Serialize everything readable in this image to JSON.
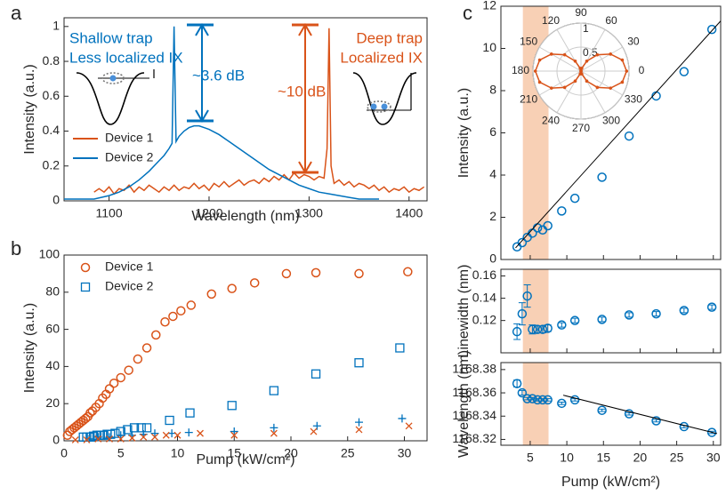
{
  "chart_data": [
    {
      "type": "line",
      "panel": "a",
      "xlabel": "Wavelength (nm)",
      "ylabel": "Intensity (a.u.)",
      "xlim": [
        1055,
        1418
      ],
      "xticks": [
        1100,
        1200,
        1300,
        1400
      ],
      "ylim": [
        0,
        1.05
      ],
      "yticks": [
        0,
        0.2,
        0.4,
        0.6,
        0.8,
        1
      ],
      "legend": "lower left",
      "annotations": [
        "Shallow trap",
        "Less localized IX",
        "Deep trap",
        "Localized IX",
        "~3.6 dB",
        "~10 dB"
      ],
      "series": [
        {
          "name": "Device 1",
          "color": "#d95319",
          "x": [
            1085,
            1090,
            1095,
            1100,
            1105,
            1110,
            1115,
            1120,
            1125,
            1130,
            1135,
            1140,
            1145,
            1150,
            1155,
            1160,
            1165,
            1170,
            1175,
            1180,
            1185,
            1190,
            1195,
            1200,
            1205,
            1210,
            1215,
            1220,
            1225,
            1230,
            1235,
            1240,
            1245,
            1250,
            1255,
            1260,
            1265,
            1270,
            1275,
            1280,
            1285,
            1290,
            1295,
            1300,
            1305,
            1310,
            1315,
            1318,
            1320,
            1322,
            1325,
            1330,
            1335,
            1340,
            1345,
            1350,
            1355,
            1360,
            1365,
            1370,
            1375,
            1380,
            1385,
            1390,
            1395,
            1400,
            1405,
            1410,
            1415
          ],
          "values": [
            0.05,
            0.07,
            0.05,
            0.08,
            0.04,
            0.07,
            0.06,
            0.09,
            0.05,
            0.08,
            0.06,
            0.09,
            0.07,
            0.05,
            0.08,
            0.06,
            0.09,
            0.06,
            0.08,
            0.07,
            0.1,
            0.07,
            0.09,
            0.06,
            0.1,
            0.08,
            0.11,
            0.08,
            0.1,
            0.12,
            0.09,
            0.11,
            0.12,
            0.1,
            0.13,
            0.11,
            0.14,
            0.12,
            0.15,
            0.12,
            0.16,
            0.13,
            0.15,
            0.14,
            0.12,
            0.14,
            0.13,
            0.3,
            0.99,
            0.2,
            0.1,
            0.12,
            0.09,
            0.11,
            0.08,
            0.1,
            0.09,
            0.07,
            0.09,
            0.06,
            0.08,
            0.05,
            0.07,
            0.06,
            0.08,
            0.05,
            0.07,
            0.06,
            0.08
          ]
        },
        {
          "name": "Device 2",
          "color": "#0072bd",
          "x": [
            1055,
            1070,
            1085,
            1100,
            1110,
            1120,
            1130,
            1140,
            1150,
            1155,
            1160,
            1163,
            1165,
            1167,
            1170,
            1175,
            1180,
            1185,
            1190,
            1195,
            1200,
            1210,
            1220,
            1230,
            1240,
            1250,
            1260,
            1270,
            1280,
            1290,
            1300,
            1310,
            1320,
            1330,
            1340,
            1350,
            1360,
            1370
          ],
          "values": [
            0.01,
            0.01,
            0.01,
            0.03,
            0.05,
            0.08,
            0.12,
            0.17,
            0.23,
            0.26,
            0.3,
            0.33,
            1,
            0.34,
            0.37,
            0.4,
            0.42,
            0.43,
            0.43,
            0.42,
            0.41,
            0.38,
            0.34,
            0.3,
            0.26,
            0.22,
            0.18,
            0.15,
            0.12,
            0.09,
            0.07,
            0.05,
            0.04,
            0.03,
            0.02,
            0.01,
            0.01,
            0.01
          ]
        }
      ]
    },
    {
      "type": "scatter",
      "panel": "b",
      "xlabel": "Pump (kW/cm²)",
      "ylabel": "Intensity (a.u.)",
      "xlim": [
        0,
        32
      ],
      "xticks": [
        0,
        5,
        10,
        15,
        20,
        25,
        30
      ],
      "ylim": [
        0,
        100
      ],
      "yticks": [
        0,
        20,
        40,
        60,
        80,
        100
      ],
      "legend": "upper left",
      "series": [
        {
          "name": "Device 1",
          "color": "#d95319",
          "marker": "o",
          "x": [
            0.3,
            0.5,
            0.7,
            0.9,
            1.1,
            1.3,
            1.5,
            1.7,
            1.9,
            2.1,
            2.3,
            2.5,
            2.8,
            3.1,
            3.4,
            3.7,
            4.0,
            4.4,
            5.0,
            5.7,
            6.5,
            7.3,
            8.1,
            8.9,
            9.6,
            10.3,
            11.2,
            13,
            14.8,
            16.8,
            19.6,
            22.2,
            26,
            30.3
          ],
          "values": [
            3,
            5,
            6,
            7,
            8,
            9,
            10,
            11,
            12,
            13,
            15,
            16,
            18,
            20,
            23,
            25,
            28,
            31,
            34,
            38,
            44,
            50,
            57,
            64,
            67,
            70,
            73,
            79,
            82,
            85,
            90,
            90.5,
            90,
            91
          ]
        },
        {
          "name": "Device 2",
          "color": "#0072bd",
          "marker": "s",
          "x": [
            1.7,
            2.0,
            2.3,
            2.6,
            2.9,
            3.2,
            3.5,
            3.8,
            4.1,
            4.5,
            5.0,
            5.6,
            6.2,
            6.8,
            7.3,
            9.3,
            11.1,
            14.8,
            18.5,
            22.2,
            26,
            29.6
          ],
          "values": [
            2,
            2,
            2,
            2.5,
            3,
            3,
            3,
            3.5,
            3.5,
            4,
            5,
            6,
            7,
            7,
            7,
            11,
            15,
            19,
            27,
            36,
            42,
            50
          ]
        },
        {
          "color": "#0072bd",
          "marker": "+",
          "x": [
            2.2,
            3,
            4,
            5,
            6,
            7,
            8,
            9.5,
            11,
            15,
            18.5,
            22.3,
            26,
            29.8
          ],
          "values": [
            1,
            2,
            2,
            3,
            3,
            3.5,
            4,
            4,
            4.5,
            5,
            7,
            8,
            10,
            12
          ]
        },
        {
          "color": "#d95319",
          "marker": "x",
          "x": [
            1,
            2,
            3,
            4,
            5,
            6,
            7,
            8,
            9,
            10,
            12,
            15,
            18.5,
            22,
            26,
            30.4
          ],
          "values": [
            0.5,
            0.5,
            1,
            1,
            1,
            1.5,
            2,
            2,
            3,
            3,
            4,
            3,
            4,
            5,
            6,
            8
          ]
        }
      ]
    },
    {
      "type": "scatter",
      "panel": "c",
      "ylabel": "Intensity (a.u.)",
      "xlim": [
        1,
        31
      ],
      "xticks": [
        5,
        10,
        15,
        20,
        25,
        30
      ],
      "xtick_labels": false,
      "ylim": [
        0,
        12
      ],
      "yticks": [
        0,
        2,
        4,
        6,
        8,
        10,
        12
      ],
      "shaded_range": [
        4,
        7.5
      ],
      "series": [
        {
          "color": "#0072bd",
          "marker": "o",
          "x": [
            3.2,
            3.9,
            4.6,
            5.3,
            6.0,
            6.7,
            7.4,
            9.3,
            11.1,
            14.8,
            18.5,
            22.2,
            26,
            29.8
          ],
          "values": [
            0.6,
            0.8,
            1.05,
            1.25,
            1.5,
            1.4,
            1.6,
            2.3,
            2.9,
            3.9,
            5.85,
            7.75,
            8.9,
            10.9
          ]
        },
        {
          "color": "#000000",
          "marker": "line",
          "x": [
            3,
            31
          ],
          "values": [
            0.55,
            11.3
          ]
        }
      ]
    },
    {
      "type": "polar",
      "rlim": [
        0,
        1
      ],
      "rticks": [
        0.5,
        1
      ],
      "thetaticks": [
        0,
        30,
        60,
        90,
        120,
        150,
        180,
        210,
        240,
        270,
        300,
        330
      ],
      "series": [
        {
          "color": "#d95319",
          "theta": [
            0,
            15,
            30,
            45,
            60,
            75,
            90,
            105,
            120,
            135,
            150,
            165,
            180,
            195,
            210,
            225,
            240,
            255,
            270,
            285,
            300,
            315,
            330,
            345
          ],
          "values": [
            0.95,
            0.89,
            0.71,
            0.48,
            0.24,
            0.06,
            0,
            0.06,
            0.24,
            0.48,
            0.71,
            0.89,
            0.95,
            0.89,
            0.71,
            0.48,
            0.24,
            0.06,
            0,
            0.06,
            0.24,
            0.48,
            0.71,
            0.89
          ]
        }
      ]
    },
    {
      "type": "scatter",
      "ylabel": "Linewidth (nm)",
      "xlim": [
        1,
        31
      ],
      "xticks": [
        5,
        10,
        15,
        20,
        25,
        30
      ],
      "xtick_labels": false,
      "ylim": [
        0.091,
        0.166
      ],
      "yticks": [
        0.12,
        0.14,
        0.16
      ],
      "shaded_range": [
        4,
        7.5
      ],
      "series": [
        {
          "color": "#0072bd",
          "marker": "o",
          "x": [
            3.2,
            3.9,
            4.6,
            5.3,
            6.0,
            6.7,
            7.4,
            9.3,
            11.1,
            14.8,
            18.5,
            22.2,
            26,
            29.8
          ],
          "values": [
            0.11,
            0.126,
            0.142,
            0.112,
            0.112,
            0.112,
            0.113,
            0.116,
            0.12,
            0.121,
            0.125,
            0.126,
            0.129,
            0.132
          ],
          "errors": [
            0.007,
            0.01,
            0.01,
            0.004,
            0.003,
            0.003,
            0.003,
            0.002,
            0.002,
            0.002,
            0.002,
            0.002,
            0.002,
            0.002
          ]
        }
      ]
    },
    {
      "type": "scatter",
      "xlabel": "Pump (kW/cm²)",
      "ylabel": "Wavelength (nm)",
      "xlim": [
        1,
        31
      ],
      "xticks": [
        5,
        10,
        15,
        20,
        25,
        30
      ],
      "ylim": [
        1168.315,
        1168.386
      ],
      "yticks": [
        1168.32,
        1168.34,
        1168.36,
        1168.38
      ],
      "shaded_range": [
        4,
        7.5
      ],
      "series": [
        {
          "color": "#0072bd",
          "marker": "o",
          "x": [
            3.2,
            3.9,
            4.6,
            5.3,
            6.0,
            6.7,
            7.4,
            9.3,
            11.1,
            14.8,
            18.5,
            22.2,
            26,
            29.8
          ],
          "values": [
            1168.368,
            1168.36,
            1168.355,
            1168.355,
            1168.354,
            1168.354,
            1168.354,
            1168.351,
            1168.354,
            1168.345,
            1168.342,
            1168.336,
            1168.331,
            1168.326
          ],
          "errors": [
            0.003,
            0.002,
            0.001,
            0.001,
            0.001,
            0.001,
            0.001,
            0.001,
            0.001,
            0.001,
            0.001,
            0.001,
            0.001,
            0.001
          ]
        },
        {
          "color": "#000000",
          "marker": "line",
          "x": [
            9.5,
            30.5
          ],
          "values": [
            1168.358,
            1168.325
          ]
        }
      ]
    }
  ]
}
